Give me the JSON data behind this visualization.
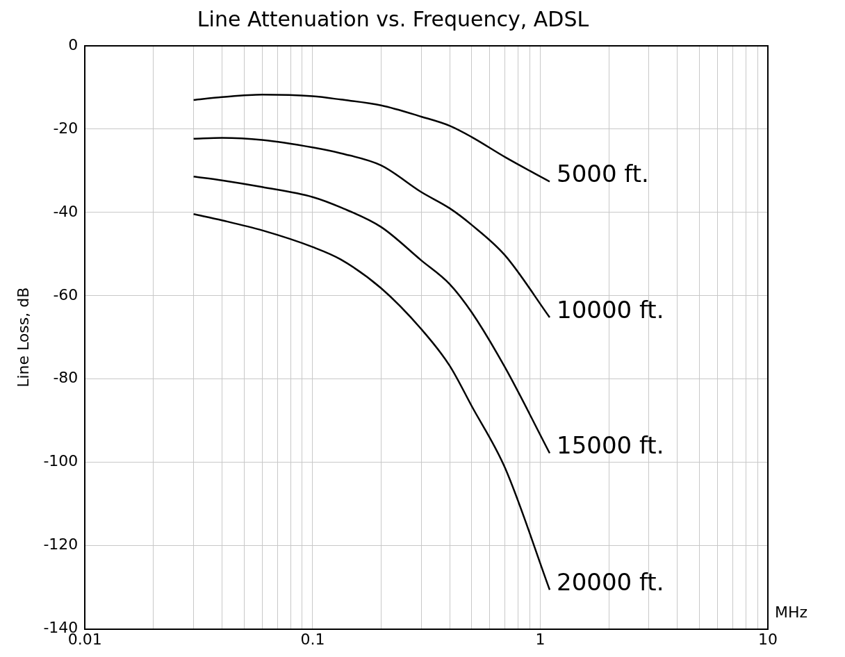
{
  "chart_data": {
    "type": "line",
    "title": "Line Attenuation vs. Frequency, ADSL",
    "xlabel": "MHz",
    "ylabel": "Line Loss, dB",
    "log": "x",
    "grid": true,
    "legend": false,
    "marker": "none",
    "line_style": "solid",
    "xlim": [
      0.01,
      10
    ],
    "ylim": [
      -140,
      0
    ],
    "xticks": [
      0.01,
      {
        "value": 0.02,
        "label": null
      },
      {
        "value": 0.03,
        "label": null
      },
      {
        "value": 0.04,
        "label": null
      },
      {
        "value": 0.05,
        "label": null
      },
      {
        "value": 0.06,
        "label": null
      },
      {
        "value": 0.07,
        "label": null
      },
      {
        "value": 0.08,
        "label": null
      },
      {
        "value": 0.09,
        "label": null
      },
      0.1,
      {
        "value": 0.2,
        "label": null
      },
      {
        "value": 0.3,
        "label": null
      },
      {
        "value": 0.4,
        "label": null
      },
      {
        "value": 0.5,
        "label": null
      },
      {
        "value": 0.6,
        "label": null
      },
      {
        "value": 0.7,
        "label": null
      },
      {
        "value": 0.8,
        "label": null
      },
      {
        "value": 0.9,
        "label": null
      },
      1,
      {
        "value": 2,
        "label": null
      },
      {
        "value": 3,
        "label": null
      },
      {
        "value": 4,
        "label": null
      },
      {
        "value": 5,
        "label": null
      },
      {
        "value": 6,
        "label": null
      },
      {
        "value": 7,
        "label": null
      },
      {
        "value": 8,
        "label": null
      },
      {
        "value": 9,
        "label": null
      },
      10
    ],
    "yticks": [
      -140,
      -120,
      -100,
      -80,
      -60,
      -40,
      -20,
      0
    ],
    "x": [
      0.03,
      0.04,
      0.06,
      0.1,
      0.133,
      0.2,
      0.3,
      0.4,
      0.5,
      0.7,
      1.1
    ],
    "series": [
      {
        "name": "5000 ft.",
        "color": "#000000",
        "values": [
          -13,
          -12.3,
          -11.7,
          -12.1,
          -12.9,
          -14.3,
          -17,
          -19.2,
          -21.9,
          -26.7,
          -32.6
        ]
      },
      {
        "name": "10000 ft.",
        "color": "#000000",
        "values": [
          -22.3,
          -22.1,
          -22.6,
          -24.4,
          -25.8,
          -28.7,
          -35.1,
          -39,
          -43,
          -50.3,
          -65.2
        ]
      },
      {
        "name": "15000 ft.",
        "color": "#000000",
        "values": [
          -31.4,
          -32.3,
          -33.9,
          -36.3,
          -38.8,
          -43.5,
          -51.5,
          -57.2,
          -64,
          -77.2,
          -97.8
        ]
      },
      {
        "name": "20000 ft.",
        "color": "#000000",
        "values": [
          -40.4,
          -41.9,
          -44.3,
          -48.3,
          -51.3,
          -58.2,
          -68,
          -76.8,
          -86.5,
          -101.3,
          -130.6
        ]
      }
    ]
  }
}
